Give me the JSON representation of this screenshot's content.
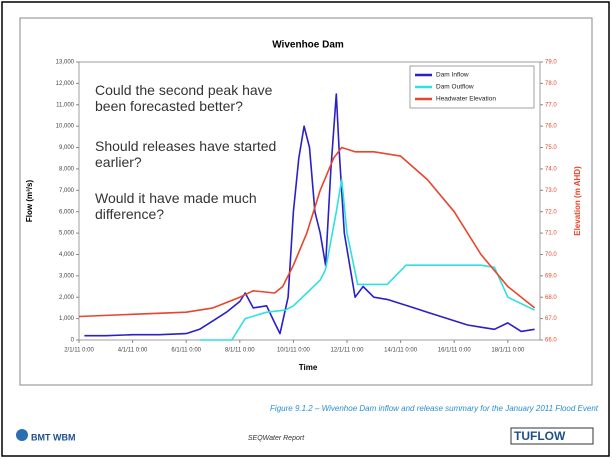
{
  "chart_data": {
    "type": "line",
    "title": "Wivenhoe Dam",
    "xlabel": "Time",
    "ylabel": "Flow (m³/s)",
    "y2label": "Elevation (m AHD)",
    "legend": "upper right",
    "grid": false,
    "xlim": [
      2,
      19.2
    ],
    "xticks": [
      {
        "value": 2,
        "label": "2/1/11 0:00"
      },
      {
        "value": 4,
        "label": "4/1/11 0:00"
      },
      {
        "value": 6,
        "label": "6/1/11 0:00"
      },
      {
        "value": 8,
        "label": "8/1/11 0:00"
      },
      {
        "value": 10,
        "label": "10/1/11 0:00"
      },
      {
        "value": 12,
        "label": "12/1/11 0:00"
      },
      {
        "value": 14,
        "label": "14/1/11 0:00"
      },
      {
        "value": 16,
        "label": "16/1/11 0:00"
      },
      {
        "value": 18,
        "label": "18/1/11 0:00"
      }
    ],
    "ylim": [
      0,
      13000
    ],
    "yticks": [
      0,
      {
        "value": 1000,
        "label": "1,000"
      },
      {
        "value": 2000,
        "label": "2,000"
      },
      {
        "value": 3000,
        "label": "3,000"
      },
      {
        "value": 4000,
        "label": "4,000"
      },
      {
        "value": 5000,
        "label": "5,000"
      },
      {
        "value": 6000,
        "label": "6,000"
      },
      {
        "value": 7000,
        "label": "7,000"
      },
      {
        "value": 8000,
        "label": "8,000"
      },
      {
        "value": 9000,
        "label": "9,000"
      },
      {
        "value": 10000,
        "label": "10,000"
      },
      {
        "value": 11000,
        "label": "11,000"
      },
      {
        "value": 12000,
        "label": "12,000"
      },
      {
        "value": 13000,
        "label": "13,000"
      }
    ],
    "y2lim": [
      66,
      79
    ],
    "y2ticks": [
      {
        "value": 66,
        "label": "66.0"
      },
      {
        "value": 67,
        "label": "67.0"
      },
      {
        "value": 68,
        "label": "68.0"
      },
      {
        "value": 69,
        "label": "69.0"
      },
      {
        "value": 70,
        "label": "70.0"
      },
      {
        "value": 71,
        "label": "71.0"
      },
      {
        "value": 72,
        "label": "72.0"
      },
      {
        "value": 73,
        "label": "73.0"
      },
      {
        "value": 74,
        "label": "74.0"
      },
      {
        "value": 75,
        "label": "75.0"
      },
      {
        "value": 76,
        "label": "76.0"
      },
      {
        "value": 77,
        "label": "77.0"
      },
      {
        "value": 78,
        "label": "78.0"
      },
      {
        "value": 79,
        "label": "79.0"
      }
    ],
    "series": [
      {
        "name": "Dam Inflow",
        "color": "#2a1fc9",
        "x": [
          2.2,
          3,
          4,
          5,
          6,
          6.5,
          7,
          7.5,
          8,
          8.2,
          8.5,
          9,
          9.3,
          9.5,
          9.8,
          10,
          10.2,
          10.4,
          10.6,
          10.8,
          11,
          11.2,
          11.4,
          11.6,
          11.7,
          11.9,
          12.1,
          12.3,
          12.6,
          13,
          13.5,
          14,
          14.5,
          15,
          15.5,
          16,
          16.5,
          17,
          17.5,
          18,
          18.5,
          19
        ],
        "values": [
          200,
          200,
          250,
          250,
          300,
          500,
          900,
          1300,
          1800,
          2200,
          1500,
          1600,
          800,
          300,
          2000,
          6000,
          8500,
          10000,
          9000,
          6000,
          5000,
          3500,
          8000,
          11500,
          9000,
          5000,
          3500,
          2000,
          2500,
          2000,
          1900,
          1700,
          1500,
          1300,
          1100,
          900,
          700,
          600,
          500,
          800,
          400,
          500
        ]
      },
      {
        "name": "Dam Outflow",
        "color": "#2fe0e0",
        "x": [
          6.5,
          7.7,
          8.2,
          9,
          9.7,
          10,
          10.5,
          11,
          11.2,
          11.6,
          11.8,
          12,
          12.4,
          13.5,
          14.2,
          17,
          17.5,
          18,
          19
        ],
        "values": [
          0,
          0,
          1000,
          1300,
          1400,
          1600,
          2200,
          2800,
          3300,
          6000,
          7500,
          5000,
          2600,
          2600,
          3500,
          3500,
          3400,
          2000,
          1400
        ]
      },
      {
        "name": "Headwater Elevation",
        "color": "#e8452c",
        "axis": "y2",
        "x": [
          2,
          4,
          6,
          7,
          8,
          8.5,
          9.3,
          9.6,
          10,
          10.5,
          11,
          11.5,
          11.8,
          12.3,
          13,
          14,
          15,
          16,
          17,
          18,
          19
        ],
        "values": [
          67.1,
          67.2,
          67.3,
          67.5,
          68.0,
          68.3,
          68.2,
          68.5,
          69.5,
          71.0,
          73.0,
          74.5,
          75.0,
          74.8,
          74.8,
          74.6,
          73.5,
          72.0,
          70.0,
          68.5,
          67.5
        ]
      }
    ],
    "annotations": [
      "Could the second peak have been forecasted better?",
      "Should releases have started earlier?",
      "Would it have made much difference?"
    ]
  },
  "caption": "Figure 9.1.2 – Wivenhoe Dam inflow and release summary for the January 2011 Flood Event",
  "footer": {
    "logo": "BMT WBM",
    "center": "SEQWater Report",
    "right": "TUFLOW"
  }
}
